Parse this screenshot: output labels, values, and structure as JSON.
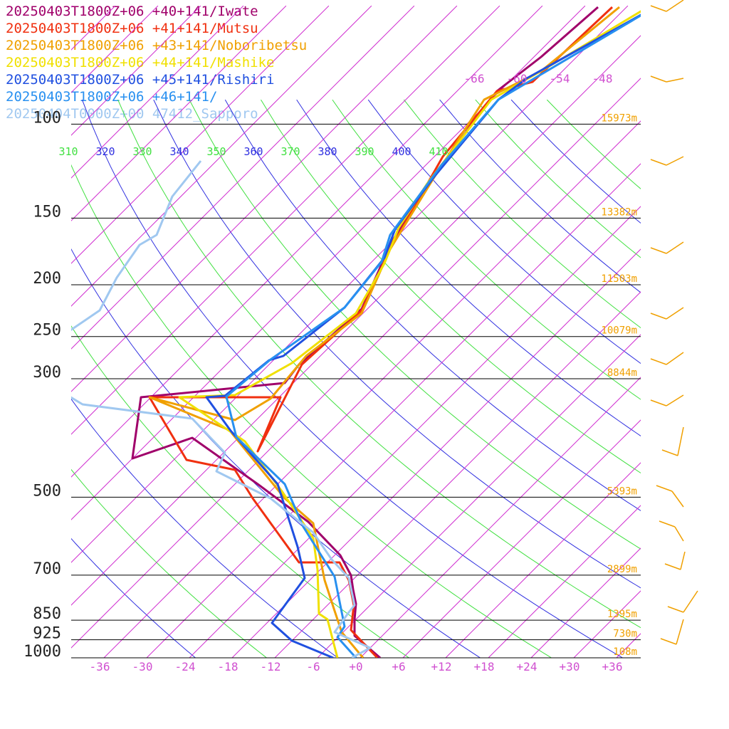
{
  "chart_data": {
    "type": "line",
    "title": "",
    "legend": [
      {
        "label": "20250403T1800Z+06 +40+141/Iwate",
        "color": "#a0006a"
      },
      {
        "label": "20250403T1800Z+06 +41+141/Mutsu",
        "color": "#f03010"
      },
      {
        "label": "20250403T1800Z+06 +43+141/Noboribetsu",
        "color": "#f0a000"
      },
      {
        "label": "20250403T1800Z+06 +44+141/Mashike",
        "color": "#f0e000"
      },
      {
        "label": "20250403T1800Z+06 +45+141/Rishiri",
        "color": "#2050e0"
      },
      {
        "label": "20250403T1800Z+06 +46+141/",
        "color": "#2890f0"
      },
      {
        "label": "20250404T0000Z+00 47412_Sapporo",
        "color": "#a0c8f0"
      }
    ],
    "pressure_levels": [
      {
        "p": 100,
        "label": "100",
        "height": "15973m"
      },
      {
        "p": 150,
        "label": "150",
        "height": "13382m"
      },
      {
        "p": 200,
        "label": "200",
        "height": "11503m"
      },
      {
        "p": 250,
        "label": "250",
        "height": "10079m"
      },
      {
        "p": 300,
        "label": "300",
        "height": "8844m"
      },
      {
        "p": 500,
        "label": "500",
        "height": "5393m"
      },
      {
        "p": 700,
        "label": "700",
        "height": "2899m"
      },
      {
        "p": 850,
        "label": "850",
        "height": "1395m"
      },
      {
        "p": 925,
        "label": "925",
        "height": "730m"
      },
      {
        "p": 1000,
        "label": "1000",
        "height": "108m"
      }
    ],
    "temperature_ticks": [
      "-36",
      "-30",
      "-24",
      "-18",
      "-12",
      "-6",
      "+0",
      "+6",
      "+12",
      "+18",
      "+24",
      "+30",
      "+36"
    ],
    "upper_temperature_ticks": [
      "-66",
      "-60",
      "-54",
      "-48"
    ],
    "theta_labels": [
      "310",
      "320",
      "330",
      "340",
      "350",
      "360",
      "370",
      "380",
      "390",
      "400",
      "410"
    ],
    "xlim": [
      -40,
      40
    ],
    "plim": [
      1000,
      100
    ],
    "series": [
      {
        "name": "20250403T1800Z+06 +40+141/Iwate",
        "color": "#a0006a",
        "points": [
          [
            2,
            1000
          ],
          [
            -1,
            950
          ],
          [
            -1.5,
            925
          ],
          [
            -0.5,
            880
          ],
          [
            -1,
            850
          ],
          [
            -1.5,
            800
          ],
          [
            -1,
            750
          ],
          [
            -4,
            700
          ],
          [
            -8,
            650
          ],
          [
            -18,
            580
          ],
          [
            -24,
            500
          ],
          [
            -32,
            400
          ],
          [
            -31,
            300
          ]
        ]
      },
      {
        "name": "20250403T1800Z+06 +41+141/Mutsu",
        "color": "#f03010"
      },
      {
        "name": "20250403T1800Z+06 +43+141/Noboribetsu",
        "color": "#f0a000"
      },
      {
        "name": "20250403T1800Z+06 +44+141/Mashike",
        "color": "#f0e000"
      },
      {
        "name": "20250403T1800Z+06 +45+141/Rishiri",
        "color": "#2050e0"
      },
      {
        "name": "20250403T1800Z+06 +46+141/",
        "color": "#2890f0"
      },
      {
        "name": "20250404T0000Z+00 47412_Sapporo",
        "color": "#a0c8f0"
      }
    ],
    "grid": true
  },
  "colors": {
    "isotherm": "#d030d0",
    "dry_adiabat": "#3030e0",
    "moist_adiabat": "#40e040",
    "isobar": "#000000",
    "height_label": "#f0a000",
    "wind_barb": "#f0a000",
    "temp_tick": "#d050d0"
  }
}
